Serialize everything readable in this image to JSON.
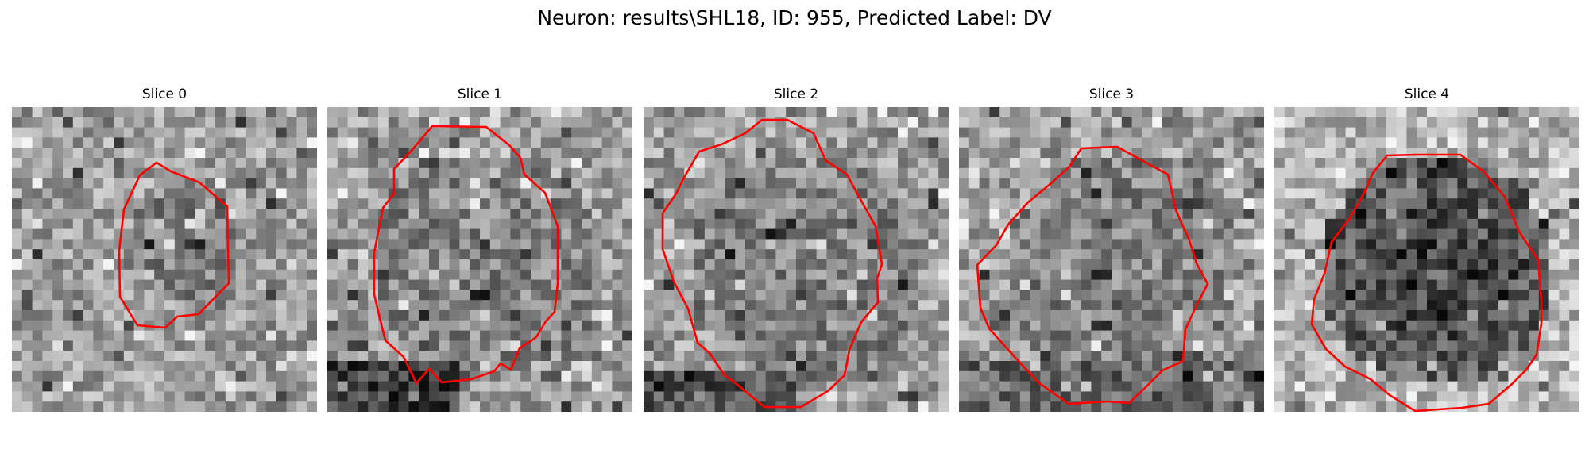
{
  "figure": {
    "title": "Neuron: results\\SHL18, ID: 955, Predicted Label: DV"
  },
  "panels": [
    {
      "title": "Slice 0",
      "contour_color": "#ff0000",
      "region": "small",
      "texture": "outer"
    },
    {
      "title": "Slice 1",
      "contour_color": "#ff0000",
      "region": "large",
      "texture": "outer"
    },
    {
      "title": "Slice 2",
      "contour_color": "#ff0000",
      "region": "large",
      "texture": "outer"
    },
    {
      "title": "Slice 3",
      "contour_color": "#ff0000",
      "region": "large",
      "texture": "outer"
    },
    {
      "title": "Slice 4",
      "contour_color": "#ff0000",
      "region": "large",
      "texture": "dark-center"
    }
  ],
  "colors": {
    "background": "#ffffff",
    "image_base": "#8e8e8e",
    "contour": "#ff0000"
  }
}
